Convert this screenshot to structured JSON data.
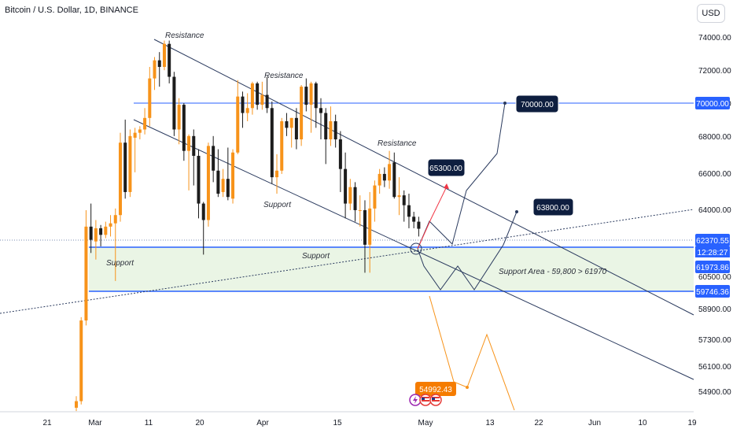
{
  "header": {
    "title": "Bitcoin / U.S. Dollar, 1D, BINANCE",
    "currency_button": "USD"
  },
  "colors": {
    "up": "#f7931a",
    "down": "#1c1c1c",
    "trendline": "#2a3a5e",
    "level": "#2962ff",
    "support_zone": "#eaf5e5",
    "projection_up": "#f23645",
    "projection_down": "#f7931a",
    "badge": "#0e1e3f",
    "badge_orange": "#f57c00"
  },
  "annotations": {
    "resistance_1": "Resistance",
    "resistance_2": "Resistance",
    "resistance_3": "Resistance",
    "support_1": "Support",
    "support_2": "Support",
    "support_3": "Support",
    "support_area": "Support Area - 59,800 > 61970"
  },
  "target_labels": {
    "t1": "70000.00",
    "t2": "65300.00",
    "t3": "63800.00",
    "t4": "54992.43"
  },
  "price_badges": {
    "p70000": "70000.00",
    "p62370": "62370.55",
    "countdown": "12:28:27",
    "p61973": "61973.86",
    "p59746": "59746.36"
  },
  "chart_data": {
    "type": "candlestick",
    "title": "Bitcoin / U.S. Dollar, 1D, BINANCE",
    "y_axis_ticks": [
      "74000.00",
      "72000.00",
      "70000.00",
      "68000.00",
      "66000.00",
      "64000.00",
      "60500.00",
      "58900.00",
      "57300.00",
      "56100.00",
      "54900.00"
    ],
    "x_axis_ticks": [
      "21",
      "Mar",
      "11",
      "20",
      "Apr",
      "15",
      "May",
      "13",
      "22",
      "Jun",
      "10",
      "19"
    ],
    "levels": {
      "resistance": 70000,
      "last_price": 62370.55,
      "support_top": 61973.86,
      "support_bottom": 59746.36
    },
    "targets": [
      70000,
      65300,
      63800,
      54992.43
    ],
    "candles": [
      {
        "o": 51500,
        "h": 52200,
        "l": 51300,
        "c": 51900
      },
      {
        "o": 51900,
        "h": 57000,
        "l": 51700,
        "c": 56800
      },
      {
        "o": 56800,
        "h": 63500,
        "l": 56500,
        "c": 62500
      },
      {
        "o": 62500,
        "h": 63900,
        "l": 60900,
        "c": 61700
      },
      {
        "o": 61600,
        "h": 62900,
        "l": 60500,
        "c": 62400
      },
      {
        "o": 62400,
        "h": 62600,
        "l": 61300,
        "c": 62000
      },
      {
        "o": 62000,
        "h": 62800,
        "l": 61800,
        "c": 62500
      },
      {
        "o": 62500,
        "h": 63200,
        "l": 61900,
        "c": 62700
      },
      {
        "o": 62700,
        "h": 63600,
        "l": 59200,
        "c": 63200
      },
      {
        "o": 63200,
        "h": 68200,
        "l": 62800,
        "c": 67600
      },
      {
        "o": 67600,
        "h": 69000,
        "l": 64200,
        "c": 64600
      },
      {
        "o": 64600,
        "h": 68400,
        "l": 64300,
        "c": 68000
      },
      {
        "o": 67900,
        "h": 68500,
        "l": 65800,
        "c": 68200
      },
      {
        "o": 68200,
        "h": 68600,
        "l": 67800,
        "c": 68400
      },
      {
        "o": 68400,
        "h": 69700,
        "l": 68100,
        "c": 69100
      },
      {
        "o": 69100,
        "h": 72200,
        "l": 68600,
        "c": 71500
      },
      {
        "o": 71500,
        "h": 72800,
        "l": 70800,
        "c": 72600
      },
      {
        "o": 72600,
        "h": 73100,
        "l": 71000,
        "c": 72200
      },
      {
        "o": 72200,
        "h": 73800,
        "l": 72000,
        "c": 73600
      },
      {
        "o": 73600,
        "h": 73800,
        "l": 71200,
        "c": 71600
      },
      {
        "o": 71600,
        "h": 71900,
        "l": 68000,
        "c": 68400
      },
      {
        "o": 68400,
        "h": 70300,
        "l": 67500,
        "c": 69900
      },
      {
        "o": 69900,
        "h": 70000,
        "l": 66500,
        "c": 67100
      },
      {
        "o": 67100,
        "h": 68100,
        "l": 64700,
        "c": 68000
      },
      {
        "o": 68000,
        "h": 68400,
        "l": 65000,
        "c": 66800
      },
      {
        "o": 66800,
        "h": 67200,
        "l": 63000,
        "c": 63900
      },
      {
        "o": 63900,
        "h": 64000,
        "l": 60800,
        "c": 62900
      },
      {
        "o": 62900,
        "h": 67600,
        "l": 62500,
        "c": 67400
      },
      {
        "o": 67400,
        "h": 68000,
        "l": 65200,
        "c": 65900
      },
      {
        "o": 65900,
        "h": 67200,
        "l": 64300,
        "c": 64500
      },
      {
        "o": 64600,
        "h": 66000,
        "l": 64300,
        "c": 65400
      },
      {
        "o": 65400,
        "h": 67300,
        "l": 64100,
        "c": 64300
      },
      {
        "o": 64200,
        "h": 67200,
        "l": 63900,
        "c": 67000
      },
      {
        "o": 67000,
        "h": 71400,
        "l": 66900,
        "c": 70400
      },
      {
        "o": 70400,
        "h": 70700,
        "l": 68500,
        "c": 69400
      },
      {
        "o": 69400,
        "h": 70600,
        "l": 68900,
        "c": 69700
      },
      {
        "o": 69700,
        "h": 71300,
        "l": 69300,
        "c": 71200
      },
      {
        "o": 71200,
        "h": 71300,
        "l": 69600,
        "c": 69900
      },
      {
        "o": 69900,
        "h": 71300,
        "l": 69600,
        "c": 70500
      },
      {
        "o": 70500,
        "h": 71600,
        "l": 69400,
        "c": 69700
      },
      {
        "o": 69700,
        "h": 70100,
        "l": 65100,
        "c": 65500
      },
      {
        "o": 65500,
        "h": 66900,
        "l": 64500,
        "c": 65900
      },
      {
        "o": 65900,
        "h": 69100,
        "l": 65700,
        "c": 68900
      },
      {
        "o": 68900,
        "h": 69400,
        "l": 68000,
        "c": 68500
      },
      {
        "o": 68500,
        "h": 69100,
        "l": 67300,
        "c": 69100
      },
      {
        "o": 69100,
        "h": 69700,
        "l": 67200,
        "c": 67800
      },
      {
        "o": 67800,
        "h": 71100,
        "l": 67400,
        "c": 71000
      },
      {
        "o": 71000,
        "h": 71500,
        "l": 69500,
        "c": 69900
      },
      {
        "o": 69900,
        "h": 71300,
        "l": 68200,
        "c": 71200
      },
      {
        "o": 71200,
        "h": 71300,
        "l": 68500,
        "c": 69700
      },
      {
        "o": 69700,
        "h": 70300,
        "l": 67800,
        "c": 69400
      },
      {
        "o": 69400,
        "h": 69700,
        "l": 66300,
        "c": 67800
      },
      {
        "o": 67800,
        "h": 69800,
        "l": 67400,
        "c": 68900
      },
      {
        "o": 68900,
        "h": 69300,
        "l": 67300,
        "c": 67800
      },
      {
        "o": 67800,
        "h": 68300,
        "l": 64600,
        "c": 66000
      },
      {
        "o": 66000,
        "h": 67000,
        "l": 63000,
        "c": 63900
      },
      {
        "o": 63900,
        "h": 65400,
        "l": 63500,
        "c": 64900
      },
      {
        "o": 64900,
        "h": 65200,
        "l": 62800,
        "c": 63500
      },
      {
        "o": 63500,
        "h": 64400,
        "l": 62500,
        "c": 63500
      },
      {
        "o": 63500,
        "h": 64100,
        "l": 59700,
        "c": 61400
      },
      {
        "o": 61400,
        "h": 64600,
        "l": 59700,
        "c": 63600
      },
      {
        "o": 63600,
        "h": 65300,
        "l": 62800,
        "c": 65000
      },
      {
        "o": 65000,
        "h": 66000,
        "l": 64500,
        "c": 65700
      },
      {
        "o": 65700,
        "h": 66100,
        "l": 64900,
        "c": 65300
      },
      {
        "o": 65300,
        "h": 67100,
        "l": 64800,
        "c": 66300
      },
      {
        "o": 66400,
        "h": 67000,
        "l": 64200,
        "c": 64300
      },
      {
        "o": 64300,
        "h": 65500,
        "l": 63200,
        "c": 64400
      },
      {
        "o": 64400,
        "h": 64700,
        "l": 62800,
        "c": 63800
      },
      {
        "o": 63800,
        "h": 64500,
        "l": 62400,
        "c": 63100
      },
      {
        "o": 63100,
        "h": 63400,
        "l": 62400,
        "c": 62800
      },
      {
        "o": 62800,
        "h": 63100,
        "l": 61900,
        "c": 62370.55
      }
    ]
  }
}
